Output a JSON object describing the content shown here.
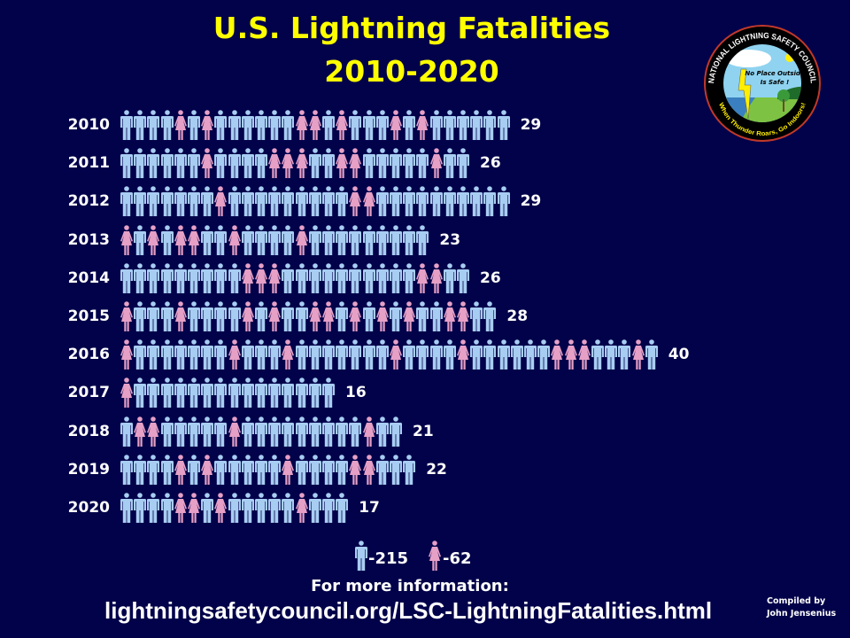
{
  "title_line1": "U.S. Lightning Fatalities",
  "title_line2": "2010-2020",
  "colors": {
    "background": "#02024a",
    "title": "#ffff00",
    "male": "#a8cdf2",
    "female": "#e6a0c6",
    "text": "#ffffff"
  },
  "icons": {
    "male": "male-person-icon",
    "female": "female-person-icon"
  },
  "chart_data": {
    "type": "bar",
    "orientation": "horizontal pictograph",
    "title": "U.S. Lightning Fatalities 2010-2020",
    "categories": [
      "2010",
      "2011",
      "2012",
      "2013",
      "2014",
      "2015",
      "2016",
      "2017",
      "2018",
      "2019",
      "2020"
    ],
    "values": [
      29,
      26,
      29,
      23,
      26,
      28,
      40,
      16,
      21,
      22,
      17
    ],
    "female_positions": [
      [
        4,
        6,
        13,
        14,
        16,
        20,
        22
      ],
      [
        6,
        11,
        12,
        13,
        16,
        17,
        23
      ],
      [
        7,
        17,
        18
      ],
      [
        0,
        2,
        4,
        5,
        8,
        13
      ],
      [
        9,
        10,
        11,
        22,
        23
      ],
      [
        0,
        4,
        9,
        11,
        14,
        15,
        17,
        19,
        21,
        24,
        25
      ],
      [
        0,
        8,
        12,
        20,
        25,
        32,
        33,
        34,
        38
      ],
      [
        0
      ],
      [
        1,
        2,
        8,
        18
      ],
      [
        4,
        6,
        12,
        17,
        18
      ],
      [
        4,
        5,
        7,
        13
      ]
    ],
    "legend": [
      {
        "icon": "male",
        "label": "-215"
      },
      {
        "icon": "female",
        "label": "-62"
      }
    ]
  },
  "footer": {
    "more_info": "For more information:",
    "url": "lightningsafetycouncil.org/LSC-LightningFatalities.html",
    "compiled_line1": "Compiled by",
    "compiled_line2": "John Jensenius"
  },
  "logo": {
    "top_text": "NATIONAL LIGHTNING SAFETY COUNCIL",
    "bottom_text": "When Thunder Roars, Go Indoors!",
    "center_text1": "No Place Outside",
    "center_text2": "Is Safe !"
  }
}
